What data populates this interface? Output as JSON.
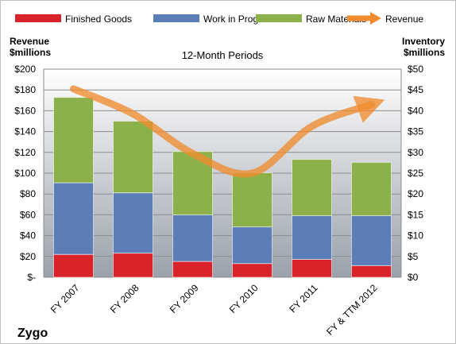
{
  "chart_data": {
    "type": "bar",
    "subtitle": "12-Month Periods",
    "brand": "Zygo",
    "categories": [
      "FY 2007",
      "FY 2008",
      "FY 2009",
      "FY 2010",
      "FY 2011",
      "FY & TTM 2012"
    ],
    "series": [
      {
        "name": "Finished Goods",
        "axis": "right",
        "values": [
          5.5,
          5.8,
          3.8,
          3.3,
          4.3,
          2.8
        ],
        "color": "#d9222a"
      },
      {
        "name": "Work in Progress",
        "axis": "right",
        "values": [
          17.2,
          14.5,
          11.2,
          8.8,
          10.5,
          12.0
        ],
        "color": "#5b7db8"
      },
      {
        "name": "Raw Materials",
        "axis": "right",
        "values": [
          20.5,
          17.2,
          15.2,
          13.0,
          13.5,
          12.8
        ],
        "color": "#8cb04a"
      },
      {
        "name": "Revenue",
        "axis": "left",
        "type": "line",
        "values": [
          181,
          157,
          119,
          100,
          145,
          166
        ],
        "color": "#f08c2e"
      }
    ],
    "left_axis": {
      "label_line1": "Revenue",
      "label_line2": "$millions",
      "ylim": [
        0,
        200
      ],
      "ticks": [
        "$-",
        "$20",
        "$40",
        "$60",
        "$80",
        "$100",
        "$120",
        "$140",
        "$160",
        "$180",
        "$200"
      ]
    },
    "right_axis": {
      "label_line1": "Inventory",
      "label_line2": "$millions",
      "ylim": [
        0,
        50
      ],
      "ticks": [
        "$0",
        "$5",
        "$10",
        "$15",
        "$20",
        "$25",
        "$30",
        "$35",
        "$40",
        "$45",
        "$50"
      ]
    },
    "grid": true,
    "legend_position": "top"
  }
}
